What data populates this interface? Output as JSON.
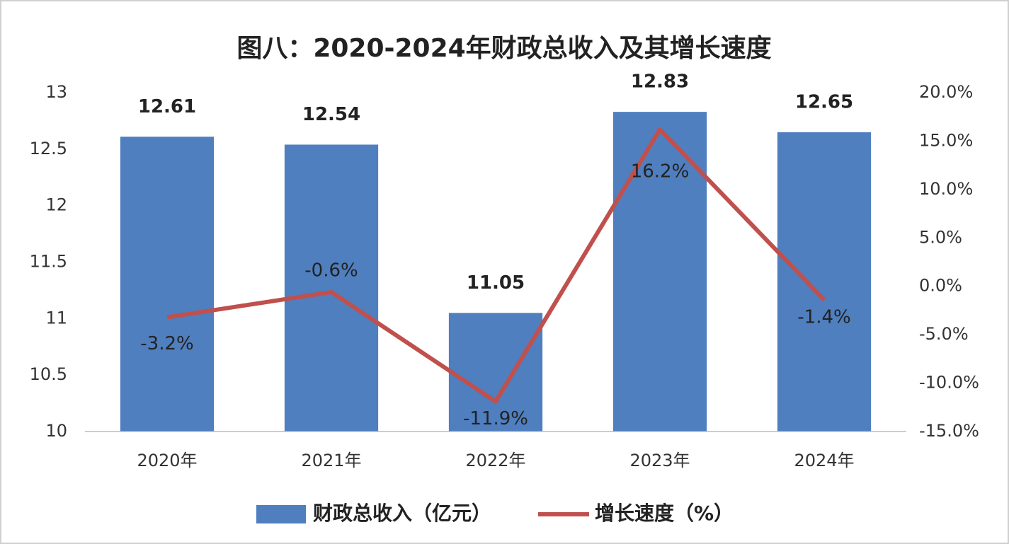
{
  "chart_data": {
    "type": "combo",
    "title": "图八：2020-2024年财政总收入及其增长速度",
    "categories": [
      "2020年",
      "2021年",
      "2022年",
      "2023年",
      "2024年"
    ],
    "series": [
      {
        "name": "财政总收入（亿元）",
        "type": "bar",
        "color": "#4f7fbe",
        "values": [
          12.61,
          12.54,
          11.05,
          12.83,
          12.65
        ]
      },
      {
        "name": "增长速度（%）",
        "type": "line",
        "axis": "y2",
        "color": "#c0504d",
        "values": [
          -3.2,
          -0.6,
          -11.9,
          16.2,
          -1.4
        ],
        "value_labels": [
          "-3.2%",
          "-0.6%",
          "-11.9%",
          "16.2%",
          "-1.4%"
        ]
      }
    ],
    "ylim": [
      10,
      13
    ],
    "yticks": [
      10,
      10.5,
      11,
      11.5,
      12,
      12.5,
      13
    ],
    "y2lim": [
      -15,
      20
    ],
    "y2ticks": [
      {
        "value": -15,
        "label": "-15.0%"
      },
      {
        "value": -10,
        "label": "-10.0%"
      },
      {
        "value": -5,
        "label": "-5.0%"
      },
      {
        "value": 0,
        "label": "0.0%"
      },
      {
        "value": 5,
        "label": "5.0%"
      },
      {
        "value": 10,
        "label": "10.0%"
      },
      {
        "value": 15,
        "label": "15.0%"
      },
      {
        "value": 20,
        "label": "20.0%"
      }
    ],
    "grid": false
  }
}
